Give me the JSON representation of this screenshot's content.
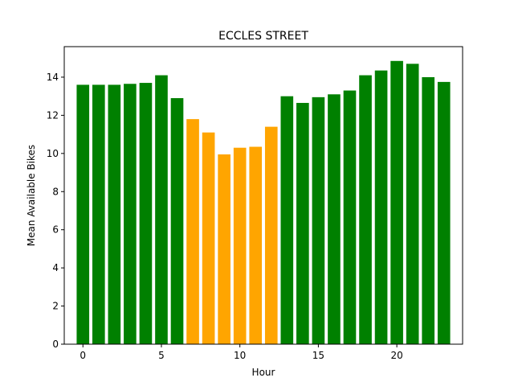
{
  "chart_data": {
    "type": "bar",
    "title": "ECCLES STREET",
    "xlabel": "Hour",
    "ylabel": "Mean Available Bikes",
    "x": [
      0,
      1,
      2,
      3,
      4,
      5,
      6,
      7,
      8,
      9,
      10,
      11,
      12,
      13,
      14,
      15,
      16,
      17,
      18,
      19,
      20,
      21,
      22,
      23
    ],
    "values": [
      13.6,
      13.6,
      13.6,
      13.65,
      13.7,
      14.1,
      12.9,
      11.8,
      11.1,
      9.95,
      10.3,
      10.35,
      11.4,
      13.0,
      12.65,
      12.95,
      13.1,
      13.3,
      14.1,
      14.35,
      14.85,
      14.7,
      14.0,
      13.75
    ],
    "bar_colors": [
      "#008000",
      "#008000",
      "#008000",
      "#008000",
      "#008000",
      "#008000",
      "#008000",
      "#ffa500",
      "#ffa500",
      "#ffa500",
      "#ffa500",
      "#ffa500",
      "#ffa500",
      "#008000",
      "#008000",
      "#008000",
      "#008000",
      "#008000",
      "#008000",
      "#008000",
      "#008000",
      "#008000",
      "#008000",
      "#008000"
    ],
    "xlim": [
      -1.19,
      24.19
    ],
    "ylim": [
      0,
      15.6
    ],
    "xticks": [
      0,
      5,
      10,
      15,
      20
    ],
    "yticks": [
      0,
      2,
      4,
      6,
      8,
      10,
      12,
      14
    ],
    "grid": false,
    "legend": null
  }
}
